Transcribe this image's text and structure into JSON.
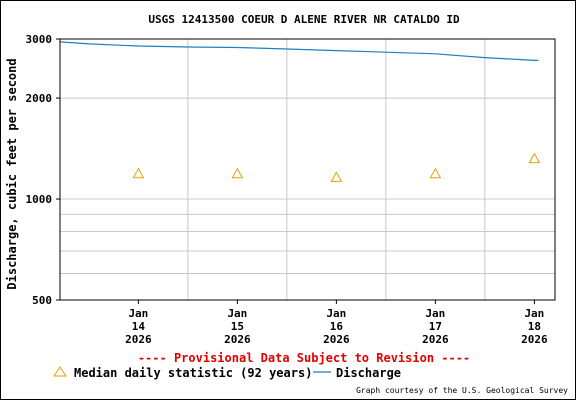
{
  "chart_data": {
    "type": "line",
    "title": "USGS 12413500 COEUR D ALENE RIVER NR CATALDO ID",
    "ylabel": "Discharge, cubic feet per second",
    "xlabel": "",
    "yscale": "log",
    "ylim": [
      500,
      3000
    ],
    "yticks": [
      {
        "value": 500,
        "label": "500"
      },
      {
        "value": 1000,
        "label": "1000"
      },
      {
        "value": 2000,
        "label": "2000"
      },
      {
        "value": 3000,
        "label": "3000"
      }
    ],
    "yminor": [
      600,
      700,
      800,
      900
    ],
    "xlim": [
      "2026-01-13T05:00",
      "2026-01-18T05:00"
    ],
    "xticks": [
      {
        "at": "2026-01-14T00:00",
        "lines": [
          "Jan",
          "14",
          "2026"
        ]
      },
      {
        "at": "2026-01-15T00:00",
        "lines": [
          "Jan",
          "15",
          "2026"
        ]
      },
      {
        "at": "2026-01-16T00:00",
        "lines": [
          "Jan",
          "16",
          "2026"
        ]
      },
      {
        "at": "2026-01-17T00:00",
        "lines": [
          "Jan",
          "17",
          "2026"
        ]
      },
      {
        "at": "2026-01-18T00:00",
        "lines": [
          "Jan",
          "18",
          "2026"
        ]
      }
    ],
    "xgrid": [
      "2026-01-14T12:00",
      "2026-01-15T12:00",
      "2026-01-16T12:00",
      "2026-01-17T12:00"
    ],
    "grid": true,
    "series": [
      {
        "name": "Discharge",
        "type": "line",
        "color": "#1f7fc0",
        "points": [
          [
            "2026-01-13T05:00",
            2940
          ],
          [
            "2026-01-13T12:00",
            2900
          ],
          [
            "2026-01-14T00:00",
            2860
          ],
          [
            "2026-01-14T12:00",
            2840
          ],
          [
            "2026-01-15T00:00",
            2830
          ],
          [
            "2026-01-15T12:00",
            2800
          ],
          [
            "2026-01-16T00:00",
            2770
          ],
          [
            "2026-01-16T12:00",
            2740
          ],
          [
            "2026-01-17T00:00",
            2710
          ],
          [
            "2026-01-17T12:00",
            2640
          ],
          [
            "2026-01-18T00:00",
            2590
          ],
          [
            "2026-01-18T01:00",
            2590
          ]
        ]
      },
      {
        "name": "Median daily statistic (92 years)",
        "type": "scatter",
        "marker": "triangle",
        "color": "#e0a000",
        "points": [
          [
            "2026-01-14T00:00",
            1190
          ],
          [
            "2026-01-15T00:00",
            1190
          ],
          [
            "2026-01-16T00:00",
            1160
          ],
          [
            "2026-01-17T00:00",
            1190
          ],
          [
            "2026-01-18T00:00",
            1320
          ]
        ]
      }
    ],
    "legend": {
      "placement": "bottom",
      "items": [
        {
          "label": "Median daily statistic (92 years)",
          "symbol": "triangle"
        },
        {
          "label": "Discharge",
          "symbol": "line"
        }
      ]
    },
    "annotations": {
      "provisional": "---- Provisional Data Subject to Revision ----",
      "credit": "Graph courtesy of the U.S. Geological Survey"
    }
  },
  "colors": {
    "provisional": "#e00000",
    "grid": "#c8c8c8",
    "axis": "#000000"
  }
}
